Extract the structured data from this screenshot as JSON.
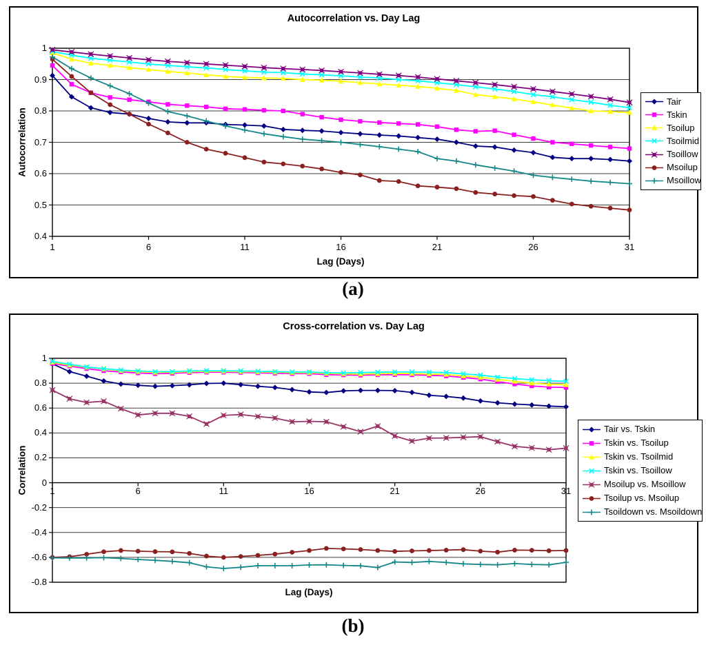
{
  "captions": {
    "a": "(a)",
    "b": "(b)"
  },
  "chart_data": [
    {
      "type": "line",
      "title": "Autocorrelation vs. Day Lag",
      "xlabel": "Lag (Days)",
      "ylabel": "Autocorrelation",
      "x": [
        1,
        2,
        3,
        4,
        5,
        6,
        7,
        8,
        9,
        10,
        11,
        12,
        13,
        14,
        15,
        16,
        17,
        18,
        19,
        20,
        21,
        22,
        23,
        24,
        25,
        26,
        27,
        28,
        29,
        30,
        31
      ],
      "xticks": [
        "1",
        "6",
        "11",
        "16",
        "21",
        "26",
        "31"
      ],
      "yticks": [
        "1",
        "0.9",
        "0.8",
        "0.7",
        "0.6",
        "0.5",
        "0.4"
      ],
      "ylim": [
        0.4,
        1
      ],
      "grid": true,
      "legend_position": "right",
      "series": [
        {
          "name": "Tair",
          "color": "#000080",
          "marker": "diamond",
          "values": [
            0.913,
            0.845,
            0.81,
            0.795,
            0.79,
            0.776,
            0.765,
            0.762,
            0.762,
            0.757,
            0.755,
            0.752,
            0.741,
            0.738,
            0.736,
            0.731,
            0.727,
            0.723,
            0.72,
            0.715,
            0.71,
            0.7,
            0.688,
            0.685,
            0.675,
            0.667,
            0.652,
            0.648,
            0.648,
            0.645,
            0.64
          ]
        },
        {
          "name": "Tskin",
          "color": "#FF00FF",
          "marker": "square",
          "values": [
            0.945,
            0.885,
            0.858,
            0.843,
            0.836,
            0.829,
            0.821,
            0.817,
            0.813,
            0.807,
            0.805,
            0.802,
            0.8,
            0.79,
            0.78,
            0.772,
            0.767,
            0.763,
            0.76,
            0.757,
            0.75,
            0.74,
            0.735,
            0.737,
            0.724,
            0.712,
            0.7,
            0.695,
            0.69,
            0.685,
            0.68
          ]
        },
        {
          "name": "Tsoilup",
          "color": "#FFFF00",
          "marker": "triangle",
          "values": [
            0.985,
            0.965,
            0.952,
            0.945,
            0.938,
            0.932,
            0.926,
            0.921,
            0.915,
            0.91,
            0.907,
            0.905,
            0.904,
            0.9,
            0.898,
            0.895,
            0.89,
            0.886,
            0.882,
            0.878,
            0.872,
            0.865,
            0.852,
            0.845,
            0.838,
            0.829,
            0.819,
            0.809,
            0.8,
            0.798,
            0.795
          ]
        },
        {
          "name": "Tsoilmid",
          "color": "#00FFFF",
          "marker": "x",
          "values": [
            0.99,
            0.978,
            0.968,
            0.962,
            0.956,
            0.95,
            0.945,
            0.941,
            0.937,
            0.932,
            0.928,
            0.924,
            0.922,
            0.918,
            0.915,
            0.912,
            0.908,
            0.905,
            0.9,
            0.896,
            0.89,
            0.884,
            0.877,
            0.87,
            0.862,
            0.852,
            0.845,
            0.836,
            0.828,
            0.818,
            0.81
          ]
        },
        {
          "name": "Tsoillow",
          "color": "#800080",
          "marker": "star",
          "values": [
            0.995,
            0.988,
            0.981,
            0.975,
            0.969,
            0.963,
            0.958,
            0.954,
            0.95,
            0.946,
            0.942,
            0.938,
            0.935,
            0.932,
            0.929,
            0.925,
            0.921,
            0.917,
            0.913,
            0.908,
            0.902,
            0.896,
            0.89,
            0.884,
            0.877,
            0.87,
            0.862,
            0.854,
            0.846,
            0.837,
            0.827
          ]
        },
        {
          "name": "Msoilup",
          "color": "#8B2020",
          "marker": "circle",
          "values": [
            0.965,
            0.91,
            0.858,
            0.82,
            0.79,
            0.758,
            0.73,
            0.7,
            0.678,
            0.665,
            0.651,
            0.637,
            0.631,
            0.624,
            0.615,
            0.604,
            0.596,
            0.578,
            0.575,
            0.561,
            0.557,
            0.552,
            0.54,
            0.535,
            0.53,
            0.527,
            0.515,
            0.503,
            0.496,
            0.49,
            0.484
          ]
        },
        {
          "name": "Msoillow",
          "color": "#148888",
          "marker": "plus",
          "values": [
            0.972,
            0.935,
            0.905,
            0.88,
            0.855,
            0.825,
            0.798,
            0.784,
            0.768,
            0.752,
            0.739,
            0.727,
            0.718,
            0.71,
            0.705,
            0.7,
            0.693,
            0.686,
            0.678,
            0.67,
            0.648,
            0.64,
            0.628,
            0.618,
            0.608,
            0.595,
            0.588,
            0.582,
            0.576,
            0.572,
            0.568
          ]
        }
      ]
    },
    {
      "type": "line",
      "title": "Cross-correlation vs. Day Lag",
      "xlabel": "Lag (Days)",
      "ylabel": "Correlation",
      "x": [
        1,
        2,
        3,
        4,
        5,
        6,
        7,
        8,
        9,
        10,
        11,
        12,
        13,
        14,
        15,
        16,
        17,
        18,
        19,
        20,
        21,
        22,
        23,
        24,
        25,
        26,
        27,
        28,
        29,
        30,
        31
      ],
      "xticks": [
        "1",
        "6",
        "11",
        "16",
        "21",
        "26",
        "31"
      ],
      "yticks": [
        "1",
        "0.8",
        "0.6",
        "0.4",
        "0.2",
        "0",
        "-0.2",
        "-0.4",
        "-0.6",
        "-0.8"
      ],
      "ylim": [
        -0.8,
        1
      ],
      "grid": true,
      "legend_position": "right",
      "series": [
        {
          "name": "Tair vs. Tskin",
          "color": "#000080",
          "marker": "diamond",
          "values": [
            0.955,
            0.893,
            0.856,
            0.818,
            0.793,
            0.783,
            0.775,
            0.78,
            0.787,
            0.798,
            0.8,
            0.788,
            0.775,
            0.765,
            0.748,
            0.73,
            0.725,
            0.738,
            0.742,
            0.742,
            0.74,
            0.726,
            0.703,
            0.693,
            0.68,
            0.657,
            0.642,
            0.632,
            0.625,
            0.616,
            0.61
          ]
        },
        {
          "name": "Tskin vs. Tsoilup",
          "color": "#FF00FF",
          "marker": "square",
          "values": [
            0.958,
            0.937,
            0.917,
            0.9,
            0.89,
            0.882,
            0.876,
            0.879,
            0.885,
            0.888,
            0.888,
            0.886,
            0.883,
            0.88,
            0.877,
            0.877,
            0.868,
            0.866,
            0.864,
            0.867,
            0.868,
            0.867,
            0.863,
            0.858,
            0.846,
            0.833,
            0.812,
            0.793,
            0.778,
            0.768,
            0.765
          ]
        },
        {
          "name": "Tskin vs. Tsoilmid",
          "color": "#FFFF00",
          "marker": "triangle",
          "values": [
            0.968,
            0.945,
            0.928,
            0.913,
            0.9,
            0.893,
            0.886,
            0.888,
            0.893,
            0.895,
            0.895,
            0.893,
            0.89,
            0.888,
            0.885,
            0.885,
            0.878,
            0.875,
            0.873,
            0.876,
            0.878,
            0.877,
            0.874,
            0.87,
            0.858,
            0.847,
            0.83,
            0.815,
            0.8,
            0.792,
            0.787
          ]
        },
        {
          "name": "Tskin vs. Tsoillow",
          "color": "#00FFFF",
          "marker": "x",
          "values": [
            0.975,
            0.952,
            0.93,
            0.916,
            0.905,
            0.898,
            0.892,
            0.893,
            0.898,
            0.9,
            0.9,
            0.898,
            0.895,
            0.893,
            0.89,
            0.89,
            0.884,
            0.882,
            0.885,
            0.888,
            0.89,
            0.89,
            0.888,
            0.885,
            0.875,
            0.865,
            0.848,
            0.837,
            0.827,
            0.82,
            0.815
          ]
        },
        {
          "name": "Msoilup vs. Msoillow",
          "color": "#993366",
          "marker": "star",
          "values": [
            0.744,
            0.675,
            0.645,
            0.655,
            0.595,
            0.545,
            0.558,
            0.558,
            0.533,
            0.472,
            0.541,
            0.548,
            0.532,
            0.52,
            0.49,
            0.493,
            0.49,
            0.45,
            0.41,
            0.455,
            0.375,
            0.335,
            0.358,
            0.36,
            0.365,
            0.37,
            0.33,
            0.292,
            0.28,
            0.265,
            0.278
          ]
        },
        {
          "name": "Tsoilup vs. Msoilup",
          "color": "#8B2020",
          "marker": "circle",
          "values": [
            -0.6,
            -0.595,
            -0.575,
            -0.555,
            -0.545,
            -0.55,
            -0.554,
            -0.556,
            -0.568,
            -0.59,
            -0.6,
            -0.593,
            -0.584,
            -0.574,
            -0.559,
            -0.545,
            -0.528,
            -0.532,
            -0.537,
            -0.545,
            -0.552,
            -0.548,
            -0.545,
            -0.542,
            -0.538,
            -0.55,
            -0.558,
            -0.542,
            -0.543,
            -0.547,
            -0.545
          ]
        },
        {
          "name": "Tsoildown vs. Msoildown",
          "color": "#148888",
          "marker": "plus",
          "values": [
            -0.604,
            -0.605,
            -0.605,
            -0.603,
            -0.609,
            -0.617,
            -0.624,
            -0.632,
            -0.643,
            -0.676,
            -0.689,
            -0.68,
            -0.667,
            -0.667,
            -0.667,
            -0.661,
            -0.66,
            -0.665,
            -0.668,
            -0.682,
            -0.637,
            -0.641,
            -0.633,
            -0.641,
            -0.652,
            -0.657,
            -0.66,
            -0.65,
            -0.657,
            -0.66,
            -0.64
          ]
        }
      ]
    }
  ]
}
